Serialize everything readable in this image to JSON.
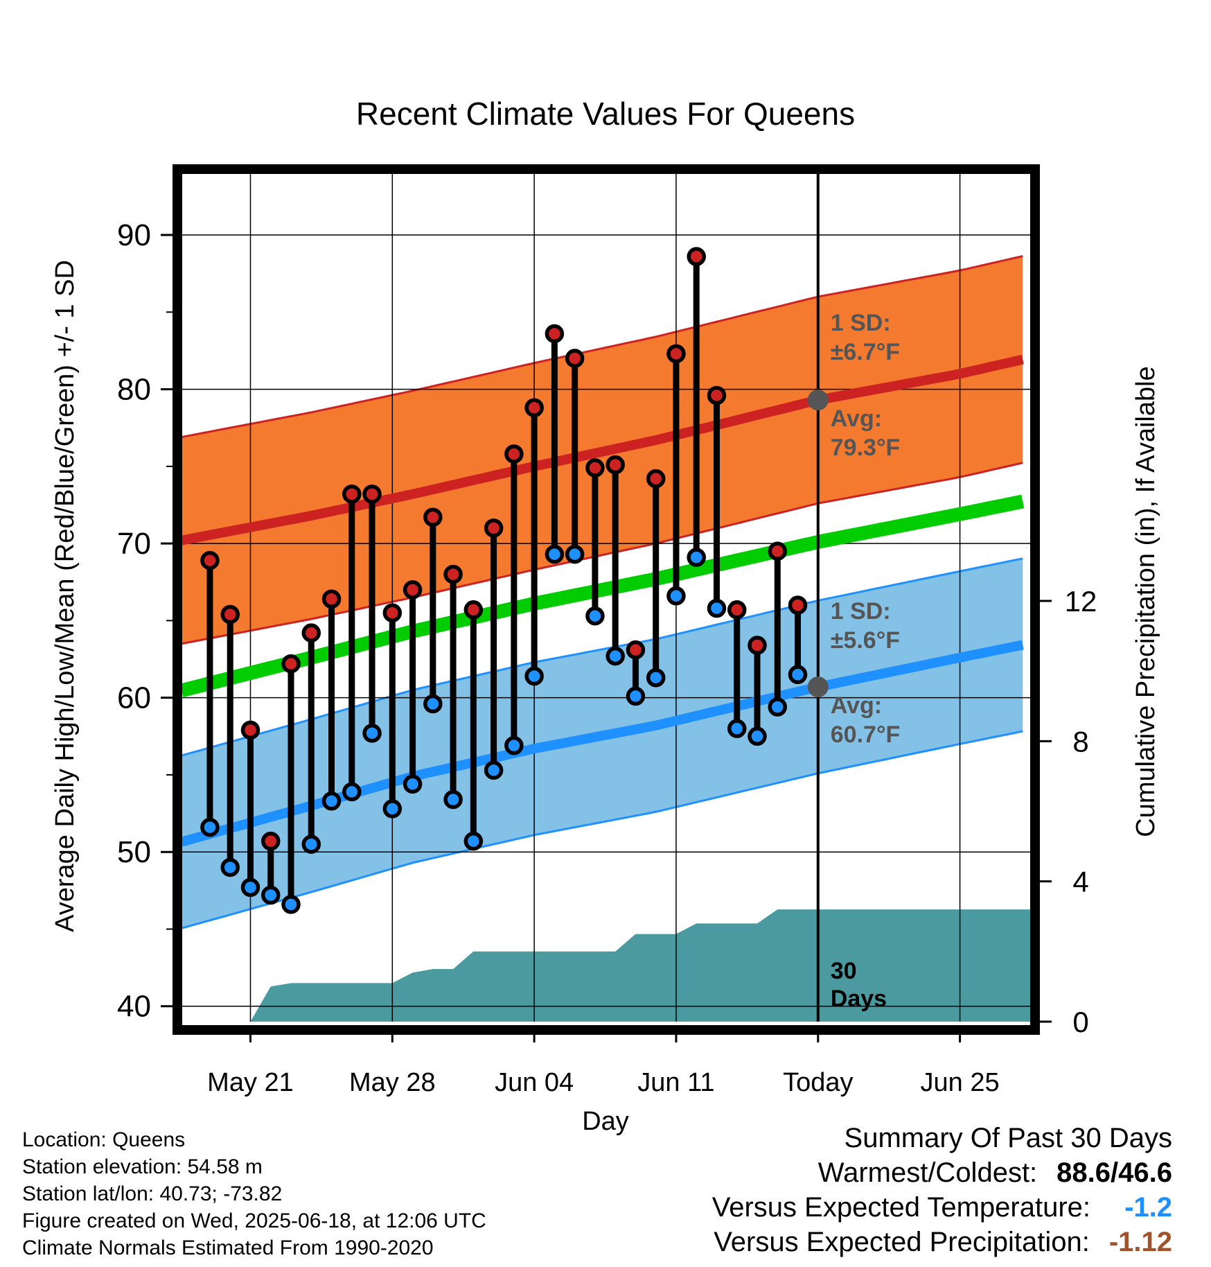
{
  "chart_data": {
    "type": "line",
    "title": "Recent Climate Values For Queens",
    "xlabel": "Day",
    "ylabel": "Average Daily High/Low/Mean (Red/Blue/Green) +/- 1 SD",
    "y2label": "Cumulative Precipitation (in), If Available",
    "xlim": [
      -3.4,
      38.5
    ],
    "ylim": [
      39,
      94
    ],
    "y2lim": [
      0,
      24.2
    ],
    "xticks": [
      {
        "pos": 0,
        "label": "May 21"
      },
      {
        "pos": 7,
        "label": "May 28"
      },
      {
        "pos": 14,
        "label": "Jun 04"
      },
      {
        "pos": 21,
        "label": "Jun 11"
      },
      {
        "pos": 28,
        "label": "Today"
      },
      {
        "pos": 35,
        "label": "Jun 25"
      }
    ],
    "yticks": [
      40,
      50,
      60,
      70,
      80,
      90
    ],
    "y2ticks": [
      0,
      4,
      8,
      12
    ],
    "grid": true,
    "today_index": 28,
    "days": [
      -2,
      -1,
      0,
      1,
      2,
      3,
      4,
      5,
      6,
      7,
      8,
      9,
      10,
      11,
      12,
      13,
      14,
      15,
      16,
      17,
      18,
      19,
      20,
      21,
      22,
      23,
      24,
      25,
      26,
      27
    ],
    "highs": [
      68.9,
      65.4,
      57.9,
      50.7,
      62.2,
      64.2,
      66.4,
      73.2,
      73.2,
      65.5,
      67.0,
      71.7,
      68.0,
      65.7,
      71.0,
      75.8,
      78.8,
      83.6,
      82.0,
      74.9,
      75.1,
      63.1,
      74.2,
      82.3,
      88.6,
      79.6,
      65.7,
      63.4,
      69.5,
      66.0
    ],
    "lows": [
      51.6,
      49.0,
      47.7,
      47.2,
      46.6,
      50.5,
      53.3,
      53.9,
      57.7,
      52.8,
      54.4,
      59.6,
      53.4,
      50.7,
      55.3,
      56.9,
      61.4,
      69.3,
      69.3,
      65.3,
      62.7,
      60.1,
      61.3,
      66.6,
      69.1,
      65.8,
      58.0,
      57.5,
      59.4,
      61.5
    ],
    "normal_high": {
      "x": [
        -3,
        3,
        8,
        14,
        20,
        28,
        35,
        38
      ],
      "values": [
        70.3,
        71.8,
        73.2,
        75.0,
        76.7,
        79.3,
        81.0,
        81.9
      ]
    },
    "normal_low": {
      "x": [
        -3,
        3,
        8,
        14,
        20,
        28,
        35,
        38
      ],
      "values": [
        50.8,
        53.0,
        54.9,
        56.7,
        58.2,
        60.7,
        62.6,
        63.4
      ]
    },
    "normal_mean": {
      "x": [
        -3,
        3,
        8,
        14,
        20,
        28,
        35,
        38
      ],
      "values": [
        60.6,
        62.6,
        64.3,
        66.1,
        67.7,
        70.1,
        71.9,
        72.7
      ]
    },
    "high_sd": 6.7,
    "low_sd": 5.6,
    "precip_cumulative": {
      "x": [
        0,
        1,
        2,
        3,
        4,
        5,
        6,
        7,
        8,
        9,
        10,
        11,
        12,
        13,
        14,
        15,
        16,
        17,
        18,
        19,
        20,
        21,
        22,
        23,
        24,
        25,
        26,
        27,
        28,
        38.5
      ],
      "values": [
        0.0,
        1.0,
        1.1,
        1.1,
        1.1,
        1.1,
        1.1,
        1.1,
        1.4,
        1.5,
        1.5,
        2.0,
        2.0,
        2.0,
        2.0,
        2.0,
        2.0,
        2.0,
        2.0,
        2.5,
        2.5,
        2.5,
        2.8,
        2.8,
        2.8,
        2.8,
        3.2,
        3.2,
        3.2,
        3.2
      ]
    },
    "annotations": {
      "high_sd_label": "1 SD:",
      "high_sd_value": "±6.7°F",
      "high_avg_label": "Avg:",
      "high_avg_value": "79.3°F",
      "low_sd_label": "1 SD:",
      "low_sd_value": "±5.6°F",
      "low_avg_label": "Avg:",
      "low_avg_value": "60.7°F",
      "days_number": "30",
      "days_word": "Days"
    },
    "colors": {
      "high": "#cc2222",
      "high_band": "#f47a30",
      "low": "#1e90ff",
      "low_band": "#84c1e7",
      "mean": "#00cc00",
      "precip": "#4a9aa0",
      "annotation": "#555555"
    }
  },
  "footer": {
    "location": "Location: Queens",
    "elevation": "Station elevation: 54.58 m",
    "latlon": "Station lat/lon: 40.73; -73.82",
    "created": "Figure created on Wed, 2025-06-18, at 12:06 UTC",
    "normals": "Climate Normals Estimated From 1990-2020"
  },
  "summary": {
    "title": "Summary Of Past 30 Days",
    "warmest_label": "Warmest/Coldest:",
    "warmest_value": "88.6/46.6",
    "temp_label": "Versus Expected Temperature:",
    "temp_value": "-1.2",
    "temp_color": "#1e90ff",
    "precip_label": "Versus Expected Precipitation:",
    "precip_value": "-1.12",
    "precip_color": "#a0522d"
  }
}
